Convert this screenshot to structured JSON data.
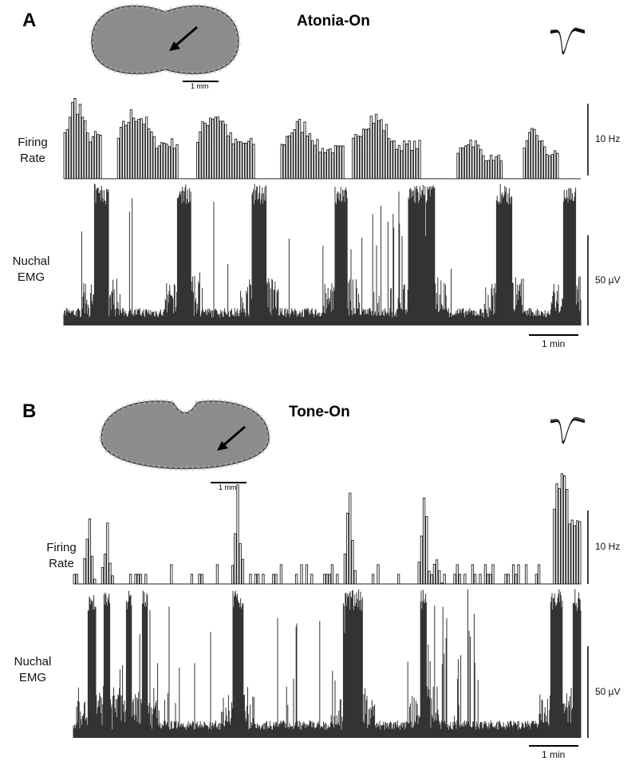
{
  "panels": [
    {
      "label": "A",
      "title": "Atonia-On",
      "image_scale": "1 mm",
      "firing_rate_label": "Firing Rate",
      "firing_rate_scale": "10 Hz",
      "emg_label": "Nuchal EMG",
      "emg_scale": "50 µV",
      "time_scale": "1 min"
    },
    {
      "label": "B",
      "title": "Tone-On",
      "image_scale": "1 mm",
      "firing_rate_label": "Firing Rate",
      "firing_rate_scale": "10 Hz",
      "emg_label": "Nuchal EMG",
      "emg_scale": "50 µV",
      "time_scale": "1 min"
    }
  ]
}
